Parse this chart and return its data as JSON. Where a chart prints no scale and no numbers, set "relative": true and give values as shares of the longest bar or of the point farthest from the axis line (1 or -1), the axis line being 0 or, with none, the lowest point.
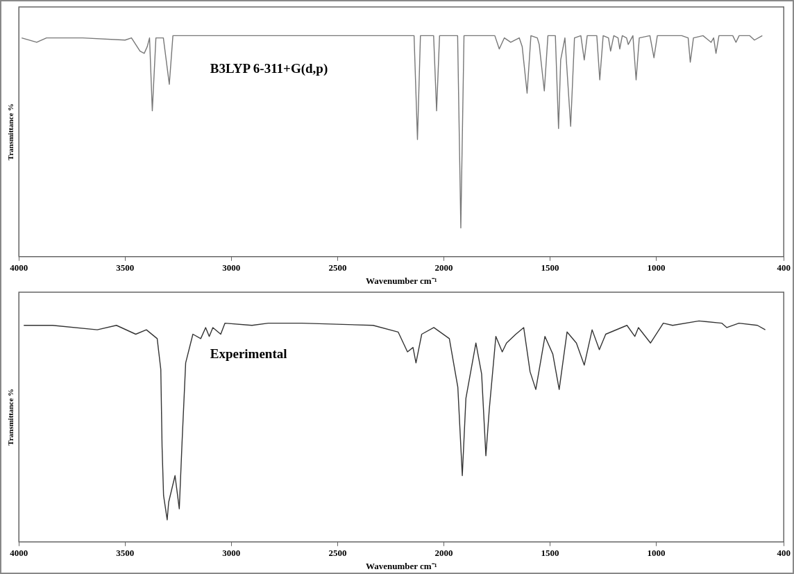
{
  "chart_data": [
    {
      "type": "line",
      "xlabel": "Wavenumber cm⁻¹",
      "ylabel": "Transmittance %",
      "annotations": [
        "B3LYP 6-311+G(d,p)"
      ],
      "relative": true,
      "legend": false,
      "marker": "none",
      "xlim": [
        4000,
        400
      ],
      "xticks": [
        4000,
        3500,
        3000,
        2500,
        2000,
        1500,
        1000,
        400
      ],
      "series": [
        {
          "color": "#777777",
          "x": [
            3987,
            3916,
            3870,
            3700,
            3500,
            3470,
            3450,
            3430,
            3410,
            3396,
            3385,
            3372,
            3355,
            3320,
            3292,
            3275,
            2140,
            2124,
            2110,
            2048,
            2034,
            2020,
            1935,
            1920,
            1905,
            1760,
            1739,
            1715,
            1685,
            1645,
            1631,
            1608,
            1590,
            1560,
            1551,
            1527,
            1510,
            1475,
            1460,
            1450,
            1430,
            1403,
            1385,
            1355,
            1339,
            1325,
            1280,
            1266,
            1250,
            1225,
            1215,
            1200,
            1180,
            1172,
            1160,
            1140,
            1132,
            1110,
            1095,
            1080,
            1030,
            1011,
            995,
            880,
            850,
            840,
            825,
            780,
            742,
            730,
            719,
            705,
            640,
            625,
            610,
            560,
            538,
            501
          ],
          "values": [
            0.99,
            0.97,
            0.99,
            0.99,
            0.98,
            0.99,
            0.96,
            0.93,
            0.92,
            0.95,
            0.99,
            0.66,
            0.99,
            0.99,
            0.78,
            1.0,
            1.0,
            0.53,
            1.0,
            1.0,
            0.66,
            1.0,
            1.0,
            0.13,
            1.0,
            1.0,
            0.94,
            0.99,
            0.97,
            0.99,
            0.95,
            0.74,
            1.0,
            0.99,
            0.96,
            0.75,
            1.0,
            1.0,
            0.58,
            0.89,
            0.99,
            0.59,
            0.99,
            1.0,
            0.89,
            1.0,
            1.0,
            0.8,
            1.0,
            0.99,
            0.93,
            1.0,
            0.99,
            0.94,
            1.0,
            0.99,
            0.96,
            1.0,
            0.8,
            0.99,
            1.0,
            0.9,
            1.0,
            1.0,
            0.99,
            0.88,
            0.99,
            1.0,
            0.97,
            0.99,
            0.92,
            1.0,
            1.0,
            0.97,
            1.0,
            1.0,
            0.98,
            1.0
          ]
        }
      ]
    },
    {
      "type": "line",
      "xlabel": "Wavenumber cm⁻¹",
      "ylabel": "Transmittance %",
      "annotations": [
        "Experimental"
      ],
      "relative": true,
      "legend": false,
      "marker": "none",
      "xlim": [
        4000,
        400
      ],
      "xticks": [
        4000,
        3500,
        3000,
        2500,
        2000,
        1500,
        1000,
        400
      ],
      "series": [
        {
          "color": "#333333",
          "x": [
            3977,
            3842,
            3631,
            3541,
            3450,
            3400,
            3349,
            3332,
            3326,
            3319,
            3302,
            3295,
            3265,
            3245,
            3232,
            3215,
            3181,
            3144,
            3121,
            3104,
            3087,
            3050,
            3030,
            2903,
            2826,
            2668,
            2333,
            2215,
            2171,
            2145,
            2131,
            2104,
            2047,
            1974,
            1934,
            1913,
            1896,
            1849,
            1822,
            1802,
            1786,
            1755,
            1725,
            1705,
            1661,
            1624,
            1594,
            1567,
            1524,
            1487,
            1457,
            1420,
            1376,
            1339,
            1302,
            1268,
            1238,
            1138,
            1101,
            1084,
            1027,
            967,
            923,
            799,
            692,
            668,
            611,
            524,
            487
          ],
          "values": [
            0.98,
            0.98,
            0.96,
            0.98,
            0.94,
            0.96,
            0.92,
            0.78,
            0.43,
            0.21,
            0.1,
            0.18,
            0.3,
            0.15,
            0.45,
            0.81,
            0.94,
            0.92,
            0.97,
            0.93,
            0.97,
            0.94,
            0.99,
            0.98,
            0.99,
            0.99,
            0.98,
            0.95,
            0.86,
            0.88,
            0.81,
            0.94,
            0.97,
            0.92,
            0.7,
            0.3,
            0.65,
            0.9,
            0.76,
            0.39,
            0.6,
            0.93,
            0.86,
            0.9,
            0.94,
            0.97,
            0.77,
            0.69,
            0.93,
            0.85,
            0.69,
            0.95,
            0.9,
            0.8,
            0.96,
            0.87,
            0.94,
            0.98,
            0.93,
            0.97,
            0.9,
            0.99,
            0.98,
            1.0,
            0.99,
            0.97,
            0.99,
            0.98,
            0.96
          ]
        }
      ]
    }
  ]
}
